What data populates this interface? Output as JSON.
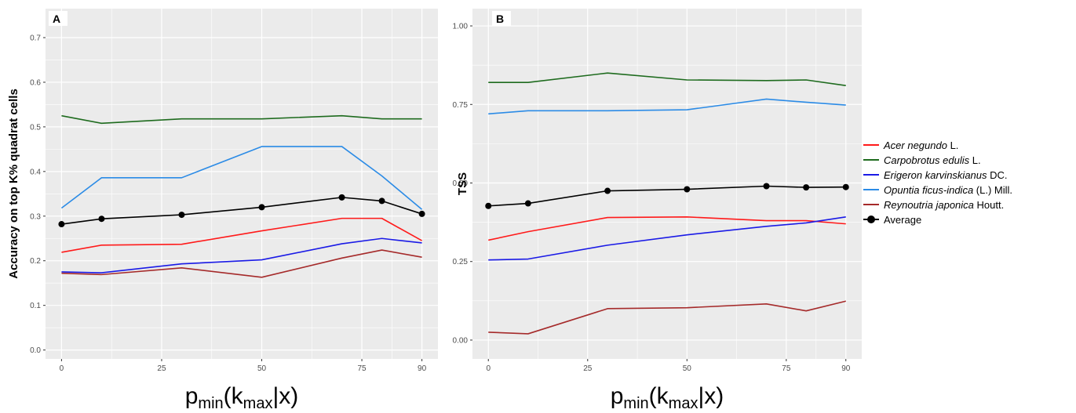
{
  "chart_data": [
    {
      "type": "line",
      "panel_tag": "A",
      "ylabel": "Accuracy on top K% quadrat cells",
      "xlabel": {
        "base": "p",
        "sub1": "min",
        "mid": "(k",
        "sub2": "max",
        "end": "|x)"
      },
      "x": [
        0,
        10,
        30,
        50,
        70,
        80,
        90
      ],
      "x_ticks": [
        0,
        25,
        50,
        75,
        90
      ],
      "x_tick_labels": [
        "0",
        "25",
        "50",
        "75",
        "90"
      ],
      "xlim": [
        -4,
        94
      ],
      "y_ticks": [
        0.0,
        0.1,
        0.2,
        0.3,
        0.4,
        0.5,
        0.6,
        0.7
      ],
      "y_tick_labels": [
        "0.0",
        "0.1",
        "0.2",
        "0.3",
        "0.4",
        "0.5",
        "0.6",
        "0.7"
      ],
      "ylim": [
        -0.02,
        0.765
      ],
      "grid": true,
      "series": [
        {
          "name": "Acer negundo L.",
          "color": "#ff1a1a",
          "values": [
            0.219,
            0.235,
            0.237,
            0.267,
            0.295,
            0.295,
            0.245
          ]
        },
        {
          "name": "Carpobrotus edulis L.",
          "color": "#1e6b1e",
          "values": [
            0.525,
            0.508,
            0.518,
            0.518,
            0.525,
            0.518,
            0.518
          ]
        },
        {
          "name": "Erigeron karvinskianus DC.",
          "color": "#1a1ae6",
          "values": [
            0.175,
            0.173,
            0.193,
            0.202,
            0.238,
            0.25,
            0.24
          ]
        },
        {
          "name": "Opuntia ficus-indica (L.) Mill.",
          "color": "#2b8be6",
          "values": [
            0.318,
            0.386,
            0.386,
            0.456,
            0.456,
            0.39,
            0.315
          ]
        },
        {
          "name": "Reynoutria japonica Houtt.",
          "color": "#a52a2a",
          "values": [
            0.172,
            0.169,
            0.184,
            0.163,
            0.206,
            0.224,
            0.208
          ]
        },
        {
          "name": "Average",
          "color": "#000000",
          "points": true,
          "values": [
            0.282,
            0.294,
            0.303,
            0.32,
            0.342,
            0.334,
            0.305
          ]
        }
      ]
    },
    {
      "type": "line",
      "panel_tag": "B",
      "ylabel": "TSS",
      "xlabel": {
        "base": "p",
        "sub1": "min",
        "mid": "(k",
        "sub2": "max",
        "end": "|x)"
      },
      "x": [
        0,
        10,
        30,
        50,
        70,
        80,
        90
      ],
      "x_ticks": [
        0,
        25,
        50,
        75,
        90
      ],
      "x_tick_labels": [
        "0",
        "25",
        "50",
        "75",
        "90"
      ],
      "xlim": [
        -4,
        94
      ],
      "y_ticks": [
        0.0,
        0.25,
        0.5,
        0.75,
        1.0
      ],
      "y_tick_labels": [
        "0.00",
        "0.25",
        "0.50",
        "0.75",
        "1.00"
      ],
      "ylim": [
        -0.06,
        1.055
      ],
      "grid": true,
      "series": [
        {
          "name": "Acer negundo L.",
          "color": "#ff1a1a",
          "values": [
            0.318,
            0.345,
            0.39,
            0.392,
            0.38,
            0.38,
            0.37
          ]
        },
        {
          "name": "Carpobrotus edulis L.",
          "color": "#1e6b1e",
          "values": [
            0.82,
            0.82,
            0.85,
            0.828,
            0.826,
            0.828,
            0.81
          ]
        },
        {
          "name": "Erigeron karvinskianus DC.",
          "color": "#1a1ae6",
          "values": [
            0.255,
            0.258,
            0.302,
            0.335,
            0.362,
            0.373,
            0.392
          ]
        },
        {
          "name": "Opuntia ficus-indica (L.) Mill.",
          "color": "#2b8be6",
          "values": [
            0.72,
            0.73,
            0.73,
            0.733,
            0.767,
            0.757,
            0.748
          ]
        },
        {
          "name": "Reynoutria japonica Houtt.",
          "color": "#a52a2a",
          "values": [
            0.025,
            0.02,
            0.1,
            0.103,
            0.115,
            0.093,
            0.124
          ]
        },
        {
          "name": "Average",
          "color": "#000000",
          "points": true,
          "values": [
            0.427,
            0.435,
            0.475,
            0.48,
            0.49,
            0.486,
            0.487
          ]
        }
      ]
    }
  ],
  "legend": {
    "items": [
      {
        "italic": "Acer negundo",
        "rest": " L.",
        "color": "#ff1a1a",
        "points": false
      },
      {
        "italic": "Carpobrotus edulis",
        "rest": " L.",
        "color": "#1e6b1e",
        "points": false
      },
      {
        "italic": "Erigeron karvinskianus",
        "rest": " DC.",
        "color": "#1a1ae6",
        "points": false
      },
      {
        "italic": "Opuntia ficus-indica",
        "rest": " (L.) Mill.",
        "color": "#2b8be6",
        "points": false
      },
      {
        "italic": "Reynoutria japonica",
        "rest": " Houtt.",
        "color": "#a52a2a",
        "points": false
      },
      {
        "italic": "",
        "rest": "Average",
        "color": "#000000",
        "points": true
      }
    ]
  },
  "colors": {
    "panel_background": "#ebebeb",
    "grid": "#ffffff"
  }
}
